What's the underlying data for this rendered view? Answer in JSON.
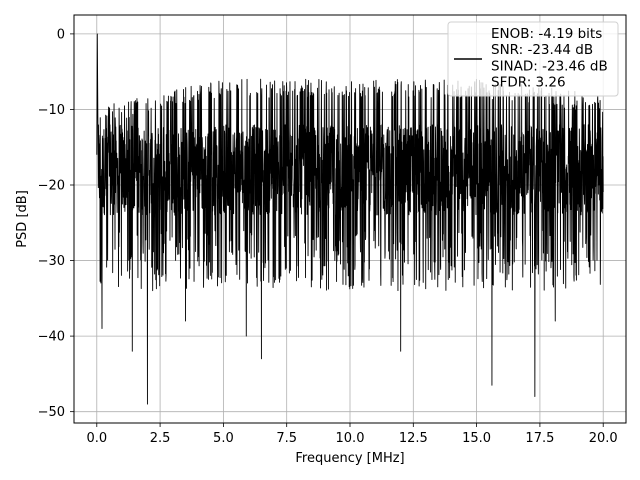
{
  "chart_data": {
    "type": "line",
    "xlabel": "Frequency [MHz]",
    "ylabel": "PSD [dB]",
    "xlim": [
      -0.9,
      20.9
    ],
    "ylim": [
      -51.5,
      2.5
    ],
    "x_range": [
      0.0,
      20.0
    ],
    "xticks": [
      0.0,
      2.5,
      5.0,
      7.5,
      10.0,
      12.5,
      15.0,
      17.5,
      20.0
    ],
    "xtick_labels": [
      "0.0",
      "2.5",
      "5.0",
      "7.5",
      "10.0",
      "12.5",
      "15.0",
      "17.5",
      "20.0"
    ],
    "yticks": [
      0,
      -10,
      -20,
      -30,
      -40,
      -50
    ],
    "ytick_labels": [
      "0",
      "−10",
      "−20",
      "−30",
      "−40",
      "−50"
    ],
    "grid": true,
    "legend_placement": "top-right",
    "series": [
      {
        "name": "ENOB: -4.19 bits\nSNR: -23.44 dB\nSINAD: -23.46 dB\nSFDR: 3.26",
        "color": "#000000",
        "peak": {
          "x": 0.02,
          "y": 0.0
        },
        "upper_envelope": [
          [
            0.1,
            -10
          ],
          [
            0.5,
            -9
          ],
          [
            2.5,
            -8
          ],
          [
            3.5,
            -7
          ],
          [
            5,
            -6
          ],
          [
            7.5,
            -6
          ],
          [
            10,
            -6
          ],
          [
            12.5,
            -6
          ],
          [
            15,
            -6
          ],
          [
            17.5,
            -7
          ],
          [
            20,
            -8
          ]
        ],
        "noise_center_db": -18,
        "deep_nulls": [
          [
            0.2,
            -39
          ],
          [
            1.4,
            -42
          ],
          [
            2.0,
            -49
          ],
          [
            3.5,
            -38
          ],
          [
            5.9,
            -40
          ],
          [
            6.5,
            -43
          ],
          [
            12.0,
            -42
          ],
          [
            15.6,
            -46.5
          ],
          [
            17.3,
            -48
          ],
          [
            18.1,
            -38
          ]
        ]
      }
    ]
  }
}
